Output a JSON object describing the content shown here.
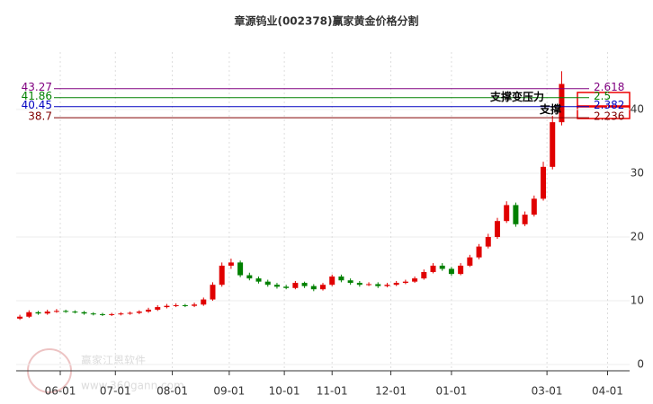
{
  "chart_data": {
    "type": "candlestick",
    "title": "章源钨业(002378)赢家黄金价格分割",
    "watermark": "赢家江恩软件",
    "watermark_url": "www.360gann.com",
    "x": [
      0,
      5,
      10,
      15,
      20,
      25,
      30,
      35,
      40,
      45,
      50,
      55,
      60,
      65,
      70,
      75,
      80,
      85,
      90,
      95,
      100,
      105,
      110,
      115,
      120,
      125,
      130,
      135,
      140,
      145,
      150,
      155,
      160,
      165,
      170,
      175,
      180,
      185,
      190,
      195,
      200,
      205,
      210,
      215,
      220,
      225,
      230,
      235,
      240,
      245,
      250,
      255,
      260,
      265,
      270,
      275,
      280,
      285,
      290,
      295
    ],
    "open": [
      7.2,
      7.5,
      8.2,
      8.0,
      8.3,
      8.4,
      8.3,
      8.2,
      8.0,
      7.9,
      7.8,
      7.9,
      8.0,
      8.1,
      8.3,
      8.6,
      9.0,
      9.2,
      9.3,
      9.2,
      9.4,
      10.2,
      12.5,
      15.5,
      16.0,
      14.0,
      13.5,
      13.0,
      12.5,
      12.2,
      12.0,
      12.8,
      12.3,
      11.8,
      12.5,
      13.8,
      13.2,
      12.8,
      12.5,
      12.6,
      12.3,
      12.5,
      12.8,
      13.0,
      13.5,
      14.5,
      15.5,
      15.0,
      14.2,
      15.5,
      16.8,
      18.5,
      20.0,
      22.5,
      25.0,
      22.0,
      23.5,
      26.0,
      31.0,
      38.0
    ],
    "close": [
      7.5,
      8.2,
      8.0,
      8.3,
      8.4,
      8.3,
      8.2,
      8.0,
      7.9,
      7.8,
      7.9,
      8.0,
      8.1,
      8.3,
      8.6,
      9.0,
      9.2,
      9.3,
      9.2,
      9.4,
      10.2,
      12.5,
      15.5,
      16.0,
      14.0,
      13.5,
      13.0,
      12.5,
      12.2,
      12.0,
      12.8,
      12.3,
      11.8,
      12.5,
      13.8,
      13.2,
      12.8,
      12.5,
      12.6,
      12.3,
      12.5,
      12.8,
      13.0,
      13.5,
      14.5,
      15.5,
      15.0,
      14.2,
      15.5,
      16.8,
      18.5,
      20.0,
      22.5,
      25.0,
      22.0,
      23.5,
      26.0,
      31.0,
      38.0,
      44.0
    ],
    "high": [
      7.8,
      8.5,
      8.4,
      8.6,
      8.7,
      8.6,
      8.5,
      8.4,
      8.2,
      8.1,
      8.1,
      8.2,
      8.3,
      8.5,
      8.9,
      9.3,
      9.5,
      9.6,
      9.5,
      9.7,
      10.5,
      12.9,
      16.0,
      16.6,
      16.3,
      14.4,
      13.8,
      13.3,
      12.8,
      12.5,
      13.1,
      13.0,
      12.6,
      12.8,
      14.1,
      14.1,
      13.5,
      13.1,
      12.9,
      12.9,
      12.8,
      13.1,
      13.3,
      13.8,
      14.9,
      15.9,
      15.9,
      15.3,
      15.9,
      17.2,
      18.9,
      20.5,
      23.0,
      25.6,
      25.4,
      24.0,
      26.5,
      31.8,
      39.0,
      46.0
    ],
    "low": [
      7.0,
      7.3,
      7.8,
      7.8,
      8.1,
      8.1,
      8.0,
      7.8,
      7.7,
      7.6,
      7.6,
      7.7,
      7.8,
      7.9,
      8.1,
      8.4,
      8.8,
      9.0,
      9.0,
      9.0,
      9.2,
      10.0,
      12.2,
      15.0,
      13.7,
      13.2,
      12.7,
      12.2,
      11.9,
      11.8,
      11.8,
      12.0,
      11.5,
      11.6,
      12.3,
      12.9,
      12.5,
      12.2,
      12.3,
      12.0,
      12.1,
      12.3,
      12.6,
      12.8,
      13.3,
      14.3,
      14.7,
      13.9,
      14.0,
      15.3,
      16.5,
      18.2,
      19.7,
      22.2,
      21.6,
      21.7,
      23.2,
      25.7,
      30.6,
      37.5
    ],
    "up_color": "#e00000",
    "down_color": "#008000",
    "xlim": [
      -2,
      332
    ],
    "xticks": [
      {
        "value": 22,
        "label": "06-01"
      },
      {
        "value": 52,
        "label": "07-01"
      },
      {
        "value": 83,
        "label": "08-01"
      },
      {
        "value": 114,
        "label": "09-01"
      },
      {
        "value": 144,
        "label": "10-01"
      },
      {
        "value": 170,
        "label": "11-01"
      },
      {
        "value": 202,
        "label": "12-01"
      },
      {
        "value": 235,
        "label": "01-01"
      },
      {
        "value": 287,
        "label": "03-01"
      },
      {
        "value": 320,
        "label": "04-01"
      }
    ],
    "ylim": [
      0,
      49
    ],
    "yticks": [
      0,
      10,
      20,
      30,
      40
    ],
    "grid": true,
    "ratio_lines": [
      {
        "price": 43.27,
        "ratio": 2.618,
        "color": "#800080"
      },
      {
        "price": 41.86,
        "ratio": 2.5,
        "color": "#008000"
      },
      {
        "price": 40.45,
        "ratio": 2.382,
        "color": "#0000c0"
      },
      {
        "price": 38.7,
        "ratio": 2.236,
        "color": "#800000"
      }
    ],
    "annotations": [
      "支撑变压力",
      "支撑"
    ]
  }
}
